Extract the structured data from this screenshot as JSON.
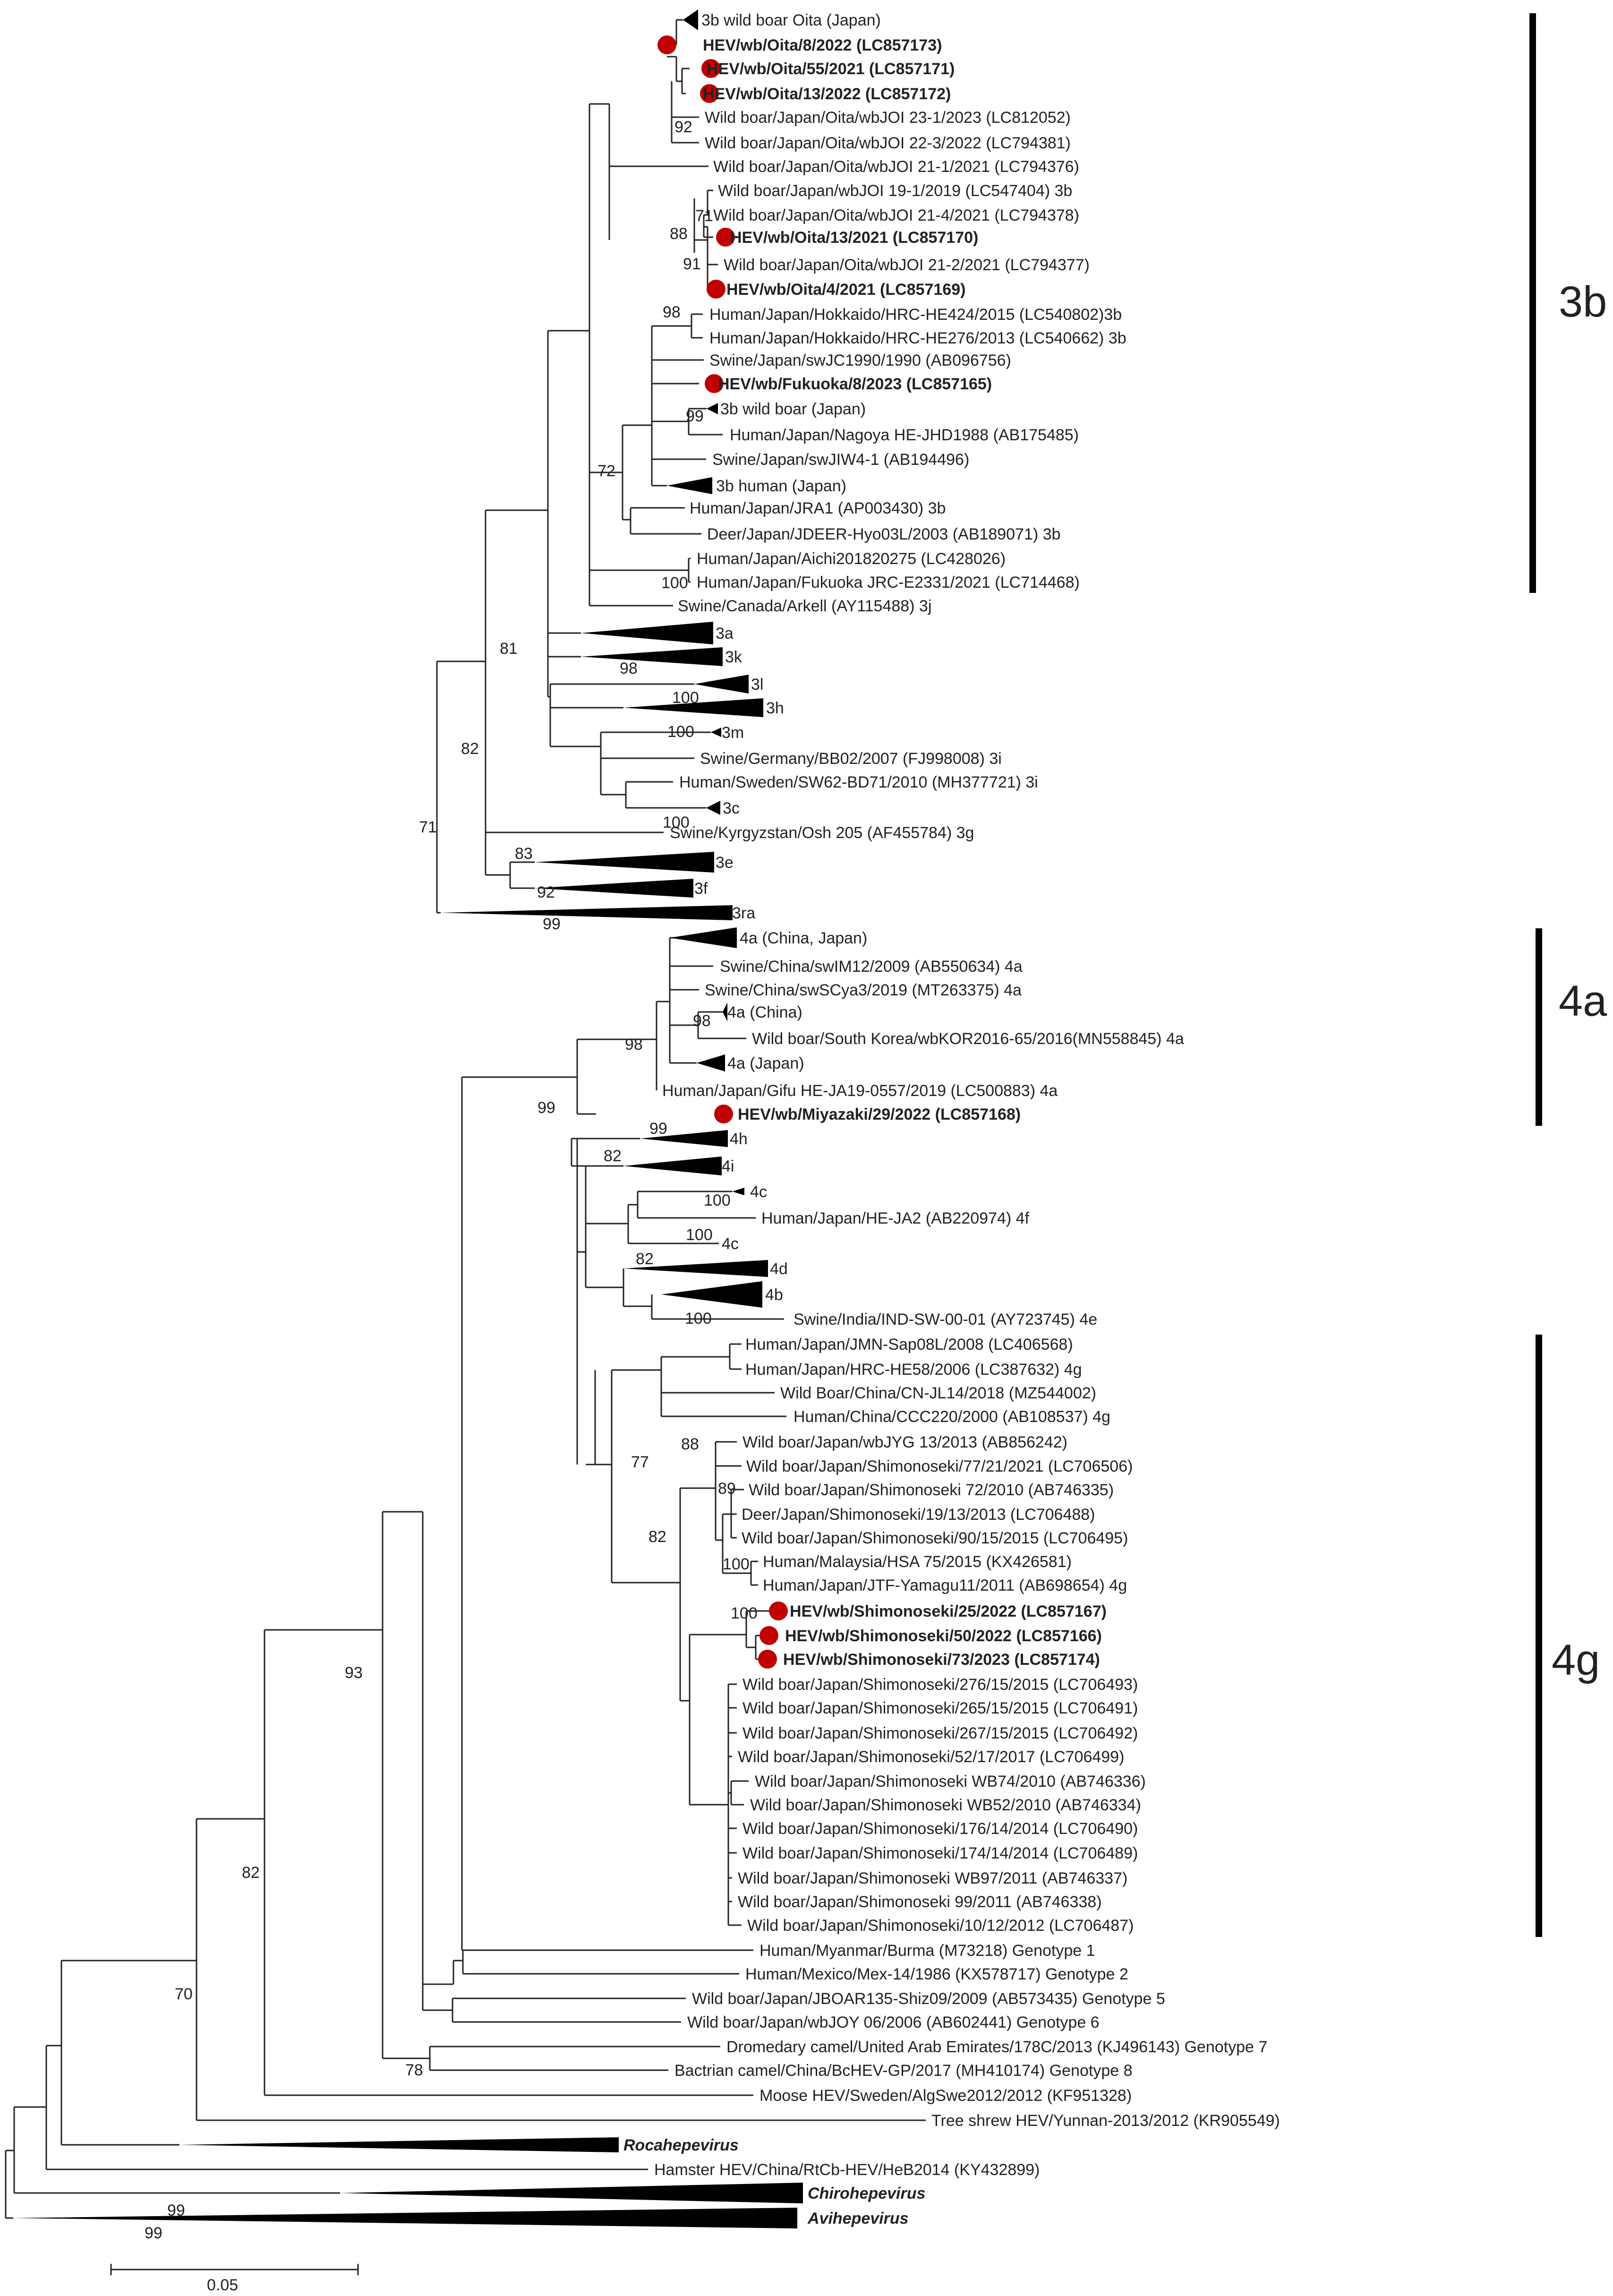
{
  "figure": {
    "scale_bar_label": "0.05"
  },
  "groups": [
    {
      "key": "g3b",
      "label": "3b"
    },
    {
      "key": "g4a",
      "label": "4a"
    },
    {
      "key": "g4g",
      "label": "4g"
    }
  ],
  "leaves": [
    {
      "key": "c3b_oita",
      "label": "3b wild boar Oita (Japan)",
      "style": "normal",
      "marker": false,
      "collapsed": true
    },
    {
      "key": "oita_8_2022",
      "label": "HEV/wb/Oita/8/2022 (LC857173)",
      "style": "bold",
      "marker": true
    },
    {
      "key": "oita_55_2021",
      "label": "HEV/wb/Oita/55/2021 (LC857171)",
      "style": "bold",
      "marker": true
    },
    {
      "key": "oita_13_2022",
      "label": "HEV/wb/Oita/13/2022 (LC857172)",
      "style": "bold",
      "marker": true
    },
    {
      "key": "wb_joi_23_1",
      "label": "Wild boar/Japan/Oita/wbJOI 23-1/2023 (LC812052)",
      "style": "normal",
      "marker": false
    },
    {
      "key": "wb_joi_22_3",
      "label": "Wild boar/Japan/Oita/wbJOI 22-3/2022 (LC794381)",
      "style": "normal",
      "marker": false
    },
    {
      "key": "wb_joi_21_1",
      "label": "Wild boar/Japan/Oita/wbJOI 21-1/2021 (LC794376)",
      "style": "normal",
      "marker": false
    },
    {
      "key": "wb_joi_19_1",
      "label": "Wild boar/Japan/wbJOI 19-1/2019 (LC547404) 3b",
      "style": "normal",
      "marker": false
    },
    {
      "key": "wb_joi_21_4",
      "label": "Wild boar/Japan/Oita/wbJOI 21-4/2021 (LC794378)",
      "style": "normal",
      "marker": false
    },
    {
      "key": "oita_13_2021",
      "label": "HEV/wb/Oita/13/2021 (LC857170)",
      "style": "bold",
      "marker": true
    },
    {
      "key": "wb_joi_21_2",
      "label": "Wild boar/Japan/Oita/wbJOI 21-2/2021 (LC794377)",
      "style": "normal",
      "marker": false
    },
    {
      "key": "oita_4_2021",
      "label": "HEV/wb/Oita/4/2021 (LC857169)",
      "style": "bold",
      "marker": true
    },
    {
      "key": "hrc_he424",
      "label": "Human/Japan/Hokkaido/HRC-HE424/2015 (LC540802)3b",
      "style": "normal",
      "marker": false
    },
    {
      "key": "hrc_he276",
      "label": "Human/Japan/Hokkaido/HRC-HE276/2013 (LC540662) 3b",
      "style": "normal",
      "marker": false
    },
    {
      "key": "swjc1990",
      "label": "Swine/Japan/swJC1990/1990 (AB096756)",
      "style": "normal",
      "marker": false
    },
    {
      "key": "fukuoka_8_2023",
      "label": "HEV/wb/Fukuoka/8/2023 (LC857165)",
      "style": "bold",
      "marker": true
    },
    {
      "key": "c3b_wb_japan",
      "label": "3b wild boar (Japan)",
      "style": "normal",
      "marker": false,
      "collapsed": true
    },
    {
      "key": "nagoya_jhd1988",
      "label": "Human/Japan/Nagoya HE-JHD1988 (AB175485)",
      "style": "normal",
      "marker": false
    },
    {
      "key": "swjiw4_1",
      "label": "Swine/Japan/swJIW4-1 (AB194496)",
      "style": "normal",
      "marker": false
    },
    {
      "key": "c3b_human",
      "label": "3b human (Japan)",
      "style": "normal",
      "marker": false,
      "collapsed": true
    },
    {
      "key": "jra1",
      "label": "Human/Japan/JRA1 (AP003430) 3b",
      "style": "normal",
      "marker": false
    },
    {
      "key": "jdeer_hyo03l",
      "label": "Deer/Japan/JDEER-Hyo03L/2003 (AB189071) 3b",
      "style": "normal",
      "marker": false
    },
    {
      "key": "aichi",
      "label": "Human/Japan/Aichi201820275 (LC428026)",
      "style": "normal",
      "marker": false
    },
    {
      "key": "fukuoka_jrc",
      "label": "Human/Japan/Fukuoka JRC-E2331/2021 (LC714468)",
      "style": "normal",
      "marker": false
    },
    {
      "key": "arkell",
      "label": "Swine/Canada/Arkell (AY115488) 3j",
      "style": "normal",
      "marker": false
    },
    {
      "key": "c3a",
      "label": "3a",
      "style": "normal",
      "marker": false,
      "collapsed": true
    },
    {
      "key": "c3k",
      "label": "3k",
      "style": "normal",
      "marker": false,
      "collapsed": true
    },
    {
      "key": "c3l",
      "label": "3l",
      "style": "normal",
      "marker": false,
      "collapsed": true
    },
    {
      "key": "c3h",
      "label": "3h",
      "style": "normal",
      "marker": false,
      "collapsed": true
    },
    {
      "key": "c3m",
      "label": "3m",
      "style": "normal",
      "marker": false,
      "collapsed": true
    },
    {
      "key": "bb02",
      "label": "Swine/Germany/BB02/2007 (FJ998008) 3i",
      "style": "normal",
      "marker": false
    },
    {
      "key": "sw62",
      "label": "Human/Sweden/SW62-BD71/2010 (MH377721) 3i",
      "style": "normal",
      "marker": false
    },
    {
      "key": "c3c",
      "label": "3c",
      "style": "normal",
      "marker": false,
      "collapsed": true
    },
    {
      "key": "osh205",
      "label": "Swine/Kyrgyzstan/Osh 205 (AF455784) 3g",
      "style": "normal",
      "marker": false
    },
    {
      "key": "c3e",
      "label": "3e",
      "style": "normal",
      "marker": false,
      "collapsed": true
    },
    {
      "key": "c3f",
      "label": "3f",
      "style": "normal",
      "marker": false,
      "collapsed": true
    },
    {
      "key": "c3ra",
      "label": "3ra",
      "style": "normal",
      "marker": false,
      "collapsed": true
    },
    {
      "key": "c4a_cj",
      "label": "4a (China, Japan)",
      "style": "normal",
      "marker": false,
      "collapsed": true
    },
    {
      "key": "swim12",
      "label": "Swine/China/swIM12/2009 (AB550634) 4a",
      "style": "normal",
      "marker": false
    },
    {
      "key": "swscya3",
      "label": "Swine/China/swSCya3/2019 (MT263375) 4a",
      "style": "normal",
      "marker": false
    },
    {
      "key": "c4a_china",
      "label": "4a (China)",
      "style": "normal",
      "marker": false,
      "collapsed": true
    },
    {
      "key": "wbkor",
      "label": "Wild boar/South Korea/wbKOR2016-65/2016(MN558845) 4a",
      "style": "normal",
      "marker": false
    },
    {
      "key": "c4a_japan",
      "label": "4a (Japan)",
      "style": "normal",
      "marker": false,
      "collapsed": true
    },
    {
      "key": "gifu",
      "label": "Human/Japan/Gifu HE-JA19-0557/2019 (LC500883) 4a",
      "style": "normal",
      "marker": false
    },
    {
      "key": "miyazaki",
      "label": "HEV/wb/Miyazaki/29/2022 (LC857168)",
      "style": "bold",
      "marker": true
    },
    {
      "key": "c4h",
      "label": "4h",
      "style": "normal",
      "marker": false,
      "collapsed": true
    },
    {
      "key": "c4i",
      "label": "4i",
      "style": "normal",
      "marker": false,
      "collapsed": true
    },
    {
      "key": "c4c_a",
      "label": "4c",
      "style": "normal",
      "marker": false,
      "collapsed": true
    },
    {
      "key": "heja2",
      "label": "Human/Japan/HE-JA2 (AB220974) 4f",
      "style": "normal",
      "marker": false
    },
    {
      "key": "c4c_b",
      "label": "4c",
      "style": "normal",
      "marker": false
    },
    {
      "key": "c4d",
      "label": "4d",
      "style": "normal",
      "marker": false,
      "collapsed": true
    },
    {
      "key": "c4b",
      "label": "4b",
      "style": "normal",
      "marker": false,
      "collapsed": true
    },
    {
      "key": "indsw",
      "label": "Swine/India/IND-SW-00-01 (AY723745) 4e",
      "style": "normal",
      "marker": false
    },
    {
      "key": "jmn_sap08l",
      "label": "Human/Japan/JMN-Sap08L/2008 (LC406568)",
      "style": "normal",
      "marker": false
    },
    {
      "key": "hrc_he58",
      "label": "Human/Japan/HRC-HE58/2006 (LC387632) 4g",
      "style": "normal",
      "marker": false
    },
    {
      "key": "cnjl14",
      "label": "Wild Boar/China/CN-JL14/2018 (MZ544002)",
      "style": "normal",
      "marker": false
    },
    {
      "key": "ccc220",
      "label": "Human/China/CCC220/2000 (AB108537) 4g",
      "style": "normal",
      "marker": false
    },
    {
      "key": "wbjyg13",
      "label": "Wild boar/Japan/wbJYG 13/2013 (AB856242)",
      "style": "normal",
      "marker": false
    },
    {
      "key": "shim_77",
      "label": "Wild boar/Japan/Shimonoseki/77/21/2021 (LC706506)",
      "style": "normal",
      "marker": false
    },
    {
      "key": "shim_72",
      "label": "Wild boar/Japan/Shimonoseki 72/2010 (AB746335)",
      "style": "normal",
      "marker": false
    },
    {
      "key": "deer_19",
      "label": "Deer/Japan/Shimonoseki/19/13/2013 (LC706488)",
      "style": "normal",
      "marker": false
    },
    {
      "key": "shim_90",
      "label": "Wild boar/Japan/Shimonoseki/90/15/2015 (LC706495)",
      "style": "normal",
      "marker": false
    },
    {
      "key": "hsa75",
      "label": "Human/Malaysia/HSA 75/2015 (KX426581)",
      "style": "normal",
      "marker": false
    },
    {
      "key": "jtf",
      "label": "Human/Japan/JTF-Yamagu11/2011 (AB698654) 4g",
      "style": "normal",
      "marker": false
    },
    {
      "key": "shim_25",
      "label": "HEV/wb/Shimonoseki/25/2022 (LC857167)",
      "style": "bold",
      "marker": true
    },
    {
      "key": "shim_50",
      "label": "HEV/wb/Shimonoseki/50/2022 (LC857166)",
      "style": "bold",
      "marker": true
    },
    {
      "key": "shim_73",
      "label": "HEV/wb/Shimonoseki/73/2023 (LC857174)",
      "style": "bold",
      "marker": true
    },
    {
      "key": "shim_276",
      "label": "Wild boar/Japan/Shimonoseki/276/15/2015 (LC706493)",
      "style": "normal",
      "marker": false
    },
    {
      "key": "shim_265",
      "label": "Wild boar/Japan/Shimonoseki/265/15/2015 (LC706491)",
      "style": "normal",
      "marker": false
    },
    {
      "key": "shim_267",
      "label": "Wild boar/Japan/Shimonoseki/267/15/2015 (LC706492)",
      "style": "normal",
      "marker": false
    },
    {
      "key": "shim_52_17",
      "label": "Wild boar/Japan/Shimonoseki/52/17/2017 (LC706499)",
      "style": "normal",
      "marker": false
    },
    {
      "key": "shim_wb74",
      "label": "Wild boar/Japan/Shimonoseki WB74/2010 (AB746336)",
      "style": "normal",
      "marker": false
    },
    {
      "key": "shim_wb52",
      "label": "Wild boar/Japan/Shimonoseki WB52/2010 (AB746334)",
      "style": "normal",
      "marker": false
    },
    {
      "key": "shim_176",
      "label": "Wild boar/Japan/Shimonoseki/176/14/2014 (LC706490)",
      "style": "normal",
      "marker": false
    },
    {
      "key": "shim_174",
      "label": "Wild boar/Japan/Shimonoseki/174/14/2014 (LC706489)",
      "style": "normal",
      "marker": false
    },
    {
      "key": "shim_wb97",
      "label": "Wild boar/Japan/Shimonoseki WB97/2011 (AB746337)",
      "style": "normal",
      "marker": false
    },
    {
      "key": "shim_99",
      "label": "Wild boar/Japan/Shimonoseki 99/2011 (AB746338)",
      "style": "normal",
      "marker": false
    },
    {
      "key": "shim_10_12",
      "label": "Wild boar/Japan/Shimonoseki/10/12/2012 (LC706487)",
      "style": "normal",
      "marker": false
    },
    {
      "key": "burma",
      "label": "Human/Myanmar/Burma (M73218) Genotype 1",
      "style": "normal",
      "marker": false
    },
    {
      "key": "mex14",
      "label": "Human/Mexico/Mex-14/1986 (KX578717) Genotype 2",
      "style": "normal",
      "marker": false
    },
    {
      "key": "jboar135",
      "label": "Wild boar/Japan/JBOAR135-Shiz09/2009 (AB573435) Genotype 5",
      "style": "normal",
      "marker": false
    },
    {
      "key": "wbjoy06",
      "label": "Wild boar/Japan/wbJOY 06/2006 (AB602441) Genotype 6",
      "style": "normal",
      "marker": false
    },
    {
      "key": "camel178c",
      "label": "Dromedary camel/United Arab Emirates/178C/2013 (KJ496143) Genotype 7",
      "style": "normal",
      "marker": false
    },
    {
      "key": "bchev",
      "label": "Bactrian camel/China/BcHEV-GP/2017 (MH410174) Genotype 8",
      "style": "normal",
      "marker": false
    },
    {
      "key": "moose",
      "label": "Moose HEV/Sweden/AlgSwe2012/2012 (KF951328)",
      "style": "normal",
      "marker": false
    },
    {
      "key": "treeshrew",
      "label": "Tree shrew HEV/Yunnan-2013/2012 (KR905549)",
      "style": "normal",
      "marker": false
    },
    {
      "key": "rocahe",
      "label": "Rocahepevirus",
      "style": "italic",
      "marker": false,
      "collapsed": true
    },
    {
      "key": "hamster",
      "label": "Hamster HEV/China/RtCb-HEV/HeB2014 (KY432899)",
      "style": "normal",
      "marker": false
    },
    {
      "key": "chirohe",
      "label": "Chirohepevirus",
      "style": "italic",
      "marker": false,
      "collapsed": true
    },
    {
      "key": "avihe",
      "label": "Avihepevirus",
      "style": "italic",
      "marker": false,
      "collapsed": true
    }
  ],
  "bootstrap": [
    {
      "key": "b1",
      "value": "92"
    },
    {
      "key": "b2",
      "value": "71"
    },
    {
      "key": "b3",
      "value": "88"
    },
    {
      "key": "b4",
      "value": "91"
    },
    {
      "key": "b5",
      "value": "98"
    },
    {
      "key": "b6",
      "value": "99"
    },
    {
      "key": "b7",
      "value": "72"
    },
    {
      "key": "b8",
      "value": "100"
    },
    {
      "key": "b9",
      "value": "81"
    },
    {
      "key": "b10",
      "value": "98"
    },
    {
      "key": "b11",
      "value": "100"
    },
    {
      "key": "b12",
      "value": "100"
    },
    {
      "key": "b13",
      "value": "82"
    },
    {
      "key": "b14",
      "value": "100"
    },
    {
      "key": "b15",
      "value": "83"
    },
    {
      "key": "b16",
      "value": "92"
    },
    {
      "key": "b17",
      "value": "71"
    },
    {
      "key": "b18",
      "value": "99"
    },
    {
      "key": "b19",
      "value": "98"
    },
    {
      "key": "b20",
      "value": "98"
    },
    {
      "key": "b21",
      "value": "99"
    },
    {
      "key": "b22",
      "value": "99"
    },
    {
      "key": "b23",
      "value": "82"
    },
    {
      "key": "b24",
      "value": "100"
    },
    {
      "key": "b25",
      "value": "100"
    },
    {
      "key": "b26",
      "value": "82"
    },
    {
      "key": "b27",
      "value": "100"
    },
    {
      "key": "b28",
      "value": "77"
    },
    {
      "key": "b29",
      "value": "88"
    },
    {
      "key": "b30",
      "value": "89"
    },
    {
      "key": "b31",
      "value": "82"
    },
    {
      "key": "b32",
      "value": "100"
    },
    {
      "key": "b33",
      "value": "100"
    },
    {
      "key": "b34",
      "value": "93"
    },
    {
      "key": "b35",
      "value": "82"
    },
    {
      "key": "b36",
      "value": "70"
    },
    {
      "key": "b37",
      "value": "78"
    },
    {
      "key": "b38",
      "value": "99"
    },
    {
      "key": "b39",
      "value": "99"
    }
  ],
  "colors": {
    "marker": "#c00000",
    "line": "#222222",
    "bar": "#000000"
  }
}
